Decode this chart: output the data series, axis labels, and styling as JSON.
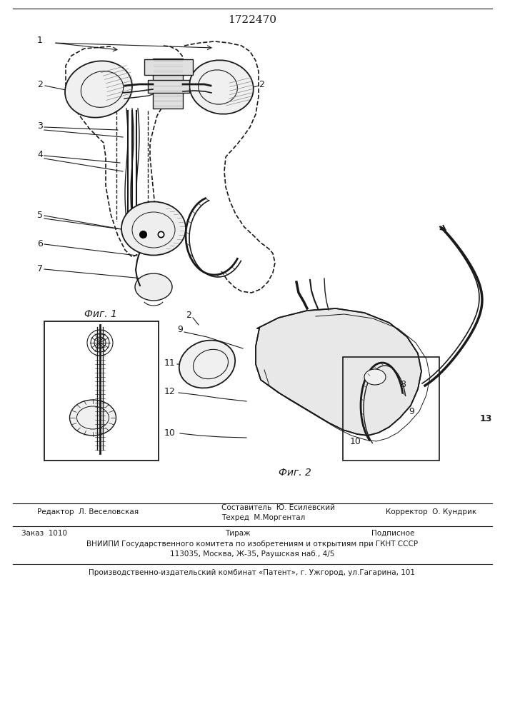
{
  "patent_number": "1722470",
  "fig1_label": "Фиг. 1",
  "fig2_label": "Фиг. 2",
  "footer_col1_line1": "Редактор  Л. Веселовская",
  "footer_col2_line1": "Составитель  Ю. Есилевский",
  "footer_col2_line2": "Техред  М.Моргентал",
  "footer_col3_line1": "Корректор  О. Кундрик",
  "footer2_col1": "Заказ  1010",
  "footer2_col2": "Тираж",
  "footer2_col3": "Подписное",
  "footer3": "ВНИИПИ Государственного комитета по изобретениям и открытиям при ГКНТ СССР",
  "footer4": "113035, Москва, Ж-35, Раушская наб., 4/5",
  "footer5": "Производственно-издательский комбинат «Патент», г. Ужгород, ул.Гагарина, 101",
  "bg": "#ffffff",
  "ink": "#1a1a1a"
}
